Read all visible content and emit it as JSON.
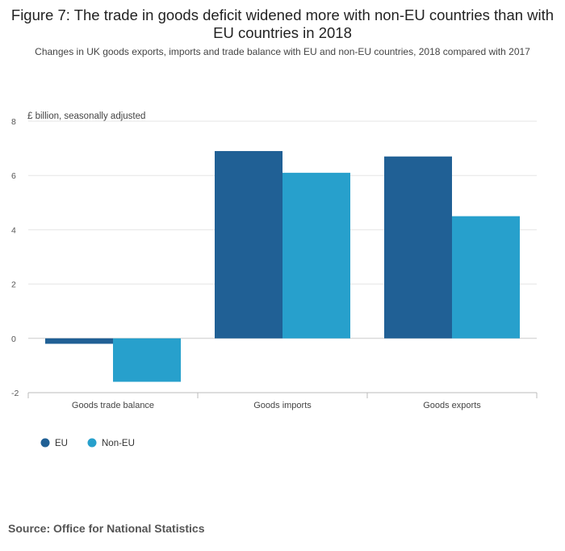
{
  "title": "Figure 7: The trade in goods deficit widened more with non-EU countries than with EU countries in 2018",
  "subtitle": "Changes in UK goods exports, imports and trade balance with EU and non-EU countries, 2018 compared with 2017",
  "source": "Source: Office for National Statistics",
  "colors": {
    "eu": "#206095",
    "non_eu": "#27a0cc",
    "grid": "#e5e5e5",
    "axis": "#bbbbbb"
  },
  "chart_data": {
    "type": "bar",
    "ylabel": "£ billion, seasonally adjusted",
    "categories": [
      "Goods trade balance",
      "Goods imports",
      "Goods exports"
    ],
    "series": [
      {
        "name": "EU",
        "values": [
          -0.2,
          6.9,
          6.7
        ]
      },
      {
        "name": "Non-EU",
        "values": [
          -1.6,
          6.1,
          4.5
        ]
      }
    ],
    "ylim": [
      -2,
      8
    ],
    "yticks": [
      -2,
      0,
      2,
      4,
      6,
      8
    ],
    "grid": true,
    "legend": "bottom-left"
  }
}
